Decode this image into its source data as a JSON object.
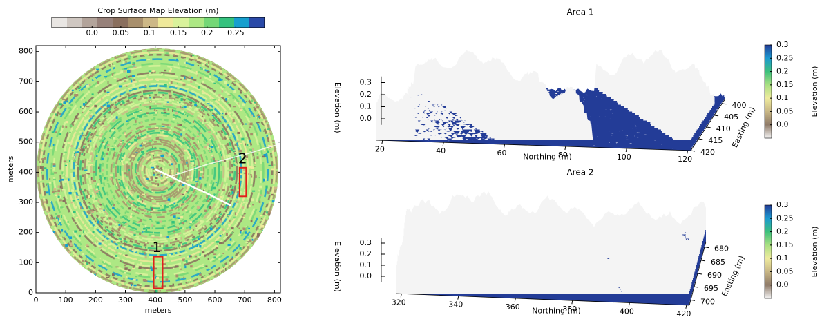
{
  "chart_data": [
    {
      "type": "map",
      "title": "Crop Surface Map Elevation (m)",
      "xlabel": "meters",
      "ylabel": "meters",
      "xlim": [
        0,
        820
      ],
      "ylim": [
        0,
        820
      ],
      "xticks": [
        0,
        100,
        200,
        300,
        400,
        500,
        600,
        700,
        800
      ],
      "yticks": [
        0,
        100,
        200,
        300,
        400,
        500,
        600,
        700,
        800
      ],
      "colors": [
        "#e9e6e3",
        "#cfc7c1",
        "#b3a49b",
        "#97817a",
        "#8a6f5e",
        "#a88f6c",
        "#cdb887",
        "#efe99a",
        "#d9f29b",
        "#ade884",
        "#74d776",
        "#34c27e",
        "#169fcf",
        "#2a4aa8"
      ],
      "clim": [
        -0.07,
        0.3
      ],
      "cticks": [
        {
          "value": 0,
          "label": "0.0"
        },
        0.05,
        0.1,
        0.15,
        0.2,
        0.25
      ],
      "annotations": [
        {
          "label": "1",
          "x": [
            395,
            425
          ],
          "y": [
            15,
            120
          ]
        },
        {
          "label": "2",
          "x": [
            683,
            705
          ],
          "y": [
            320,
            415
          ]
        }
      ]
    },
    {
      "type": "surface",
      "title": "Area 1",
      "xlabel": "Northing (m)",
      "ylabel": "Easting (m)",
      "zlabel": "Elevation (m)",
      "xlim": [
        18,
        121
      ],
      "ylim": [
        398,
        420
      ],
      "zlim": [
        -0.05,
        0.35
      ],
      "xticks": [
        20,
        40,
        60,
        80,
        100,
        120
      ],
      "yticks": [
        400,
        405,
        410,
        415,
        420
      ],
      "zticks": [
        {
          "value": 0,
          "label": "0.0"
        },
        0.1,
        0.2,
        0.3
      ],
      "colors": [
        "#f4f4f4",
        "#8e7a68",
        "#c8b685",
        "#efeb9e",
        "#a9df82",
        "#3dc07c",
        "#1c9ad0",
        "#233c97"
      ],
      "clim": [
        -0.05,
        0.3
      ],
      "colorbar_label": "Elevation (m)",
      "cticks": [
        {
          "value": 0,
          "label": "0.0"
        },
        0.05,
        0.1,
        0.15,
        0.2,
        0.25,
        0.3
      ]
    },
    {
      "type": "surface",
      "title": "Area 2",
      "xlabel": "Northing (m)",
      "ylabel": "Easting (m)",
      "zlabel": "Elevation (m)",
      "xlim": [
        318,
        421
      ],
      "ylim": [
        678,
        702
      ],
      "zlim": [
        -0.05,
        0.35
      ],
      "xticks": [
        320,
        340,
        360,
        380,
        400,
        420
      ],
      "yticks": [
        680,
        685,
        690,
        695,
        700
      ],
      "zticks": [
        {
          "value": 0,
          "label": "0.0"
        },
        0.1,
        0.2,
        0.3
      ],
      "colors": [
        "#f4f4f4",
        "#8e7a68",
        "#c8b685",
        "#efeb9e",
        "#a9df82",
        "#3dc07c",
        "#1c9ad0",
        "#233c97"
      ],
      "clim": [
        -0.05,
        0.3
      ],
      "colorbar_label": "Elevation (m)",
      "cticks": [
        {
          "value": 0,
          "label": "0.0"
        },
        0.05,
        0.1,
        0.15,
        0.2,
        0.25,
        0.3
      ]
    }
  ]
}
